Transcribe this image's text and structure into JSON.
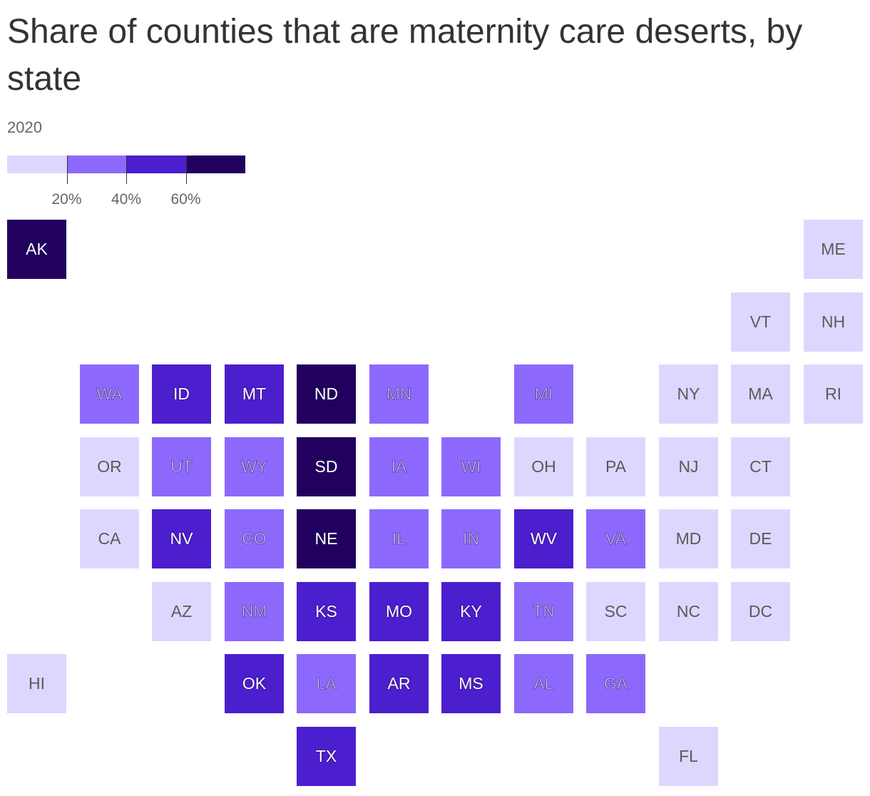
{
  "title": "Share of counties that are maternity care deserts, by state",
  "subtitle": "2020",
  "legend": {
    "colors": [
      "#dfd6ff",
      "#8c69fc",
      "#4b1fce",
      "#21005e"
    ],
    "labels": [
      "20%",
      "40%",
      "60%"
    ]
  },
  "bin_colors": [
    "#dfd6ff",
    "#8c69fc",
    "#4b1fce",
    "#21005e"
  ],
  "states": [
    {
      "abbr": "AK",
      "row": 0,
      "col": 0,
      "bin": 3
    },
    {
      "abbr": "ME",
      "row": 0,
      "col": 11,
      "bin": 0
    },
    {
      "abbr": "VT",
      "row": 1,
      "col": 10,
      "bin": 0
    },
    {
      "abbr": "NH",
      "row": 1,
      "col": 11,
      "bin": 0
    },
    {
      "abbr": "WA",
      "row": 2,
      "col": 1,
      "bin": 1
    },
    {
      "abbr": "ID",
      "row": 2,
      "col": 2,
      "bin": 2
    },
    {
      "abbr": "MT",
      "row": 2,
      "col": 3,
      "bin": 2
    },
    {
      "abbr": "ND",
      "row": 2,
      "col": 4,
      "bin": 3
    },
    {
      "abbr": "MN",
      "row": 2,
      "col": 5,
      "bin": 1
    },
    {
      "abbr": "MI",
      "row": 2,
      "col": 7,
      "bin": 1
    },
    {
      "abbr": "NY",
      "row": 2,
      "col": 9,
      "bin": 0
    },
    {
      "abbr": "MA",
      "row": 2,
      "col": 10,
      "bin": 0
    },
    {
      "abbr": "RI",
      "row": 2,
      "col": 11,
      "bin": 0
    },
    {
      "abbr": "OR",
      "row": 3,
      "col": 1,
      "bin": 0
    },
    {
      "abbr": "UT",
      "row": 3,
      "col": 2,
      "bin": 1
    },
    {
      "abbr": "WY",
      "row": 3,
      "col": 3,
      "bin": 1
    },
    {
      "abbr": "SD",
      "row": 3,
      "col": 4,
      "bin": 3
    },
    {
      "abbr": "IA",
      "row": 3,
      "col": 5,
      "bin": 1
    },
    {
      "abbr": "WI",
      "row": 3,
      "col": 6,
      "bin": 1
    },
    {
      "abbr": "OH",
      "row": 3,
      "col": 7,
      "bin": 0
    },
    {
      "abbr": "PA",
      "row": 3,
      "col": 8,
      "bin": 0
    },
    {
      "abbr": "NJ",
      "row": 3,
      "col": 9,
      "bin": 0
    },
    {
      "abbr": "CT",
      "row": 3,
      "col": 10,
      "bin": 0
    },
    {
      "abbr": "CA",
      "row": 4,
      "col": 1,
      "bin": 0
    },
    {
      "abbr": "NV",
      "row": 4,
      "col": 2,
      "bin": 2
    },
    {
      "abbr": "CO",
      "row": 4,
      "col": 3,
      "bin": 1
    },
    {
      "abbr": "NE",
      "row": 4,
      "col": 4,
      "bin": 3
    },
    {
      "abbr": "IL",
      "row": 4,
      "col": 5,
      "bin": 1
    },
    {
      "abbr": "IN",
      "row": 4,
      "col": 6,
      "bin": 1
    },
    {
      "abbr": "WV",
      "row": 4,
      "col": 7,
      "bin": 2
    },
    {
      "abbr": "VA",
      "row": 4,
      "col": 8,
      "bin": 1
    },
    {
      "abbr": "MD",
      "row": 4,
      "col": 9,
      "bin": 0
    },
    {
      "abbr": "DE",
      "row": 4,
      "col": 10,
      "bin": 0
    },
    {
      "abbr": "AZ",
      "row": 5,
      "col": 2,
      "bin": 0
    },
    {
      "abbr": "NM",
      "row": 5,
      "col": 3,
      "bin": 1
    },
    {
      "abbr": "KS",
      "row": 5,
      "col": 4,
      "bin": 2
    },
    {
      "abbr": "MO",
      "row": 5,
      "col": 5,
      "bin": 2
    },
    {
      "abbr": "KY",
      "row": 5,
      "col": 6,
      "bin": 2
    },
    {
      "abbr": "TN",
      "row": 5,
      "col": 7,
      "bin": 1
    },
    {
      "abbr": "SC",
      "row": 5,
      "col": 8,
      "bin": 0
    },
    {
      "abbr": "NC",
      "row": 5,
      "col": 9,
      "bin": 0
    },
    {
      "abbr": "DC",
      "row": 5,
      "col": 10,
      "bin": 0
    },
    {
      "abbr": "HI",
      "row": 6,
      "col": 0,
      "bin": 0
    },
    {
      "abbr": "OK",
      "row": 6,
      "col": 3,
      "bin": 2
    },
    {
      "abbr": "LA",
      "row": 6,
      "col": 4,
      "bin": 1
    },
    {
      "abbr": "AR",
      "row": 6,
      "col": 5,
      "bin": 2
    },
    {
      "abbr": "MS",
      "row": 6,
      "col": 6,
      "bin": 2
    },
    {
      "abbr": "AL",
      "row": 6,
      "col": 7,
      "bin": 1
    },
    {
      "abbr": "GA",
      "row": 6,
      "col": 8,
      "bin": 1
    },
    {
      "abbr": "TX",
      "row": 7,
      "col": 4,
      "bin": 2
    },
    {
      "abbr": "FL",
      "row": 7,
      "col": 9,
      "bin": 0
    }
  ]
}
